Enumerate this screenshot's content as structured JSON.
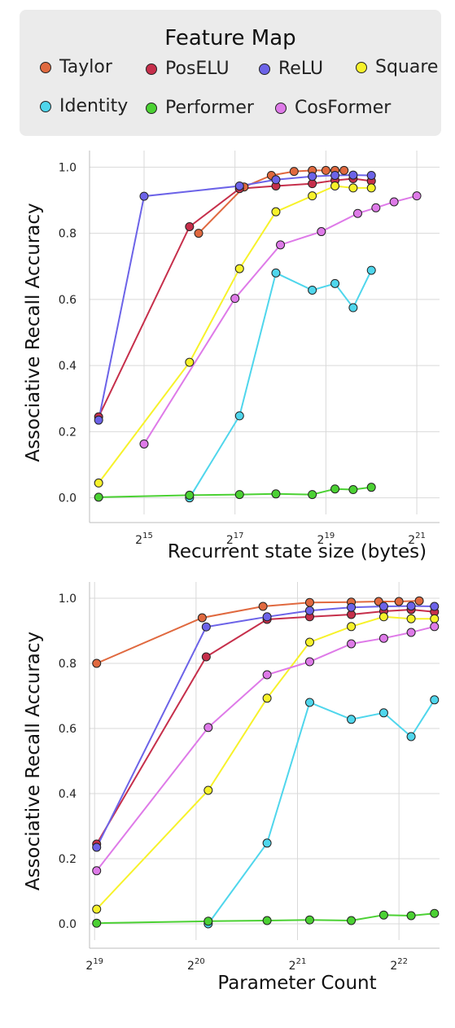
{
  "legend": {
    "title": "Feature Map",
    "items": [
      {
        "name": "Taylor",
        "color": "#e0693f"
      },
      {
        "name": "PosELU",
        "color": "#c62f4b"
      },
      {
        "name": "ReLU",
        "color": "#6c63e8"
      },
      {
        "name": "Square",
        "color": "#f7f22a"
      },
      {
        "name": "Identity",
        "color": "#4fd6ec"
      },
      {
        "name": "Performer",
        "color": "#4bd133"
      },
      {
        "name": "CosFormer",
        "color": "#de7ae8"
      }
    ]
  },
  "chart_data": [
    {
      "type": "line",
      "xlabel": "Recurrent state size (bytes)",
      "ylabel": "Associative Recall Accuracy",
      "xscale": "log2",
      "xlim": [
        13.8,
        21.5
      ],
      "ylim": [
        -0.05,
        1.05
      ],
      "xticks": [
        {
          "base": "2",
          "exp": "15",
          "value": 15
        },
        {
          "base": "2",
          "exp": "17",
          "value": 17
        },
        {
          "base": "2",
          "exp": "19",
          "value": 19
        },
        {
          "base": "2",
          "exp": "21",
          "value": 21
        }
      ],
      "yticks": [
        "0.0",
        "0.2",
        "0.4",
        "0.6",
        "0.8",
        "1.0"
      ],
      "grid": true,
      "series": [
        {
          "name": "Taylor",
          "x": [
            16.2,
            17.2,
            17.8,
            18.3,
            18.7,
            19.0,
            19.2,
            19.4
          ],
          "y": [
            0.8,
            0.94,
            0.975,
            0.987,
            0.99,
            0.99,
            0.99,
            0.99
          ]
        },
        {
          "name": "PosELU",
          "x": [
            14.0,
            16.0,
            17.1,
            17.9,
            18.7,
            19.2,
            19.6,
            20.0
          ],
          "y": [
            0.245,
            0.82,
            0.935,
            0.943,
            0.95,
            0.96,
            0.965,
            0.958
          ]
        },
        {
          "name": "ReLU",
          "x": [
            14.0,
            15.0,
            17.1,
            17.9,
            18.7,
            19.2,
            19.6,
            20.0
          ],
          "y": [
            0.235,
            0.912,
            0.943,
            0.962,
            0.972,
            0.975,
            0.976,
            0.975
          ]
        },
        {
          "name": "Square",
          "x": [
            14.0,
            16.0,
            17.1,
            17.9,
            18.7,
            19.2,
            19.6,
            20.0
          ],
          "y": [
            0.045,
            0.41,
            0.693,
            0.865,
            0.913,
            0.943,
            0.937,
            0.937
          ]
        },
        {
          "name": "Identity",
          "x": [
            16.0,
            17.1,
            17.9,
            18.7,
            19.2,
            19.6,
            20.0
          ],
          "y": [
            0.0,
            0.248,
            0.68,
            0.628,
            0.648,
            0.575,
            0.688
          ]
        },
        {
          "name": "Performer",
          "x": [
            14.0,
            16.0,
            17.1,
            17.9,
            18.7,
            19.2,
            19.6,
            20.0
          ],
          "y": [
            0.002,
            0.008,
            0.01,
            0.012,
            0.01,
            0.027,
            0.025,
            0.032
          ]
        },
        {
          "name": "CosFormer",
          "x": [
            15.0,
            17.0,
            18.0,
            18.9,
            19.7,
            20.1,
            20.5,
            21.0
          ],
          "y": [
            0.163,
            0.603,
            0.765,
            0.805,
            0.86,
            0.877,
            0.895,
            0.913
          ]
        }
      ]
    },
    {
      "type": "line",
      "xlabel": "Parameter Count",
      "ylabel": "Associative Recall Accuracy",
      "xscale": "log2",
      "xlim": [
        18.95,
        22.4
      ],
      "ylim": [
        -0.05,
        1.05
      ],
      "xticks": [
        {
          "base": "2",
          "exp": "19",
          "value": 19
        },
        {
          "base": "2",
          "exp": "20",
          "value": 20
        },
        {
          "base": "2",
          "exp": "21",
          "value": 21
        },
        {
          "base": "2",
          "exp": "22",
          "value": 22
        }
      ],
      "yticks": [
        "0.0",
        "0.2",
        "0.4",
        "0.6",
        "0.8",
        "1.0"
      ],
      "grid": true,
      "series": [
        {
          "name": "Taylor",
          "x": [
            19.02,
            20.06,
            20.66,
            21.12,
            21.53,
            21.8,
            22.0,
            22.2
          ],
          "y": [
            0.8,
            0.94,
            0.975,
            0.987,
            0.988,
            0.99,
            0.99,
            0.992
          ]
        },
        {
          "name": "PosELU",
          "x": [
            19.02,
            20.1,
            20.7,
            21.12,
            21.53,
            21.85,
            22.12,
            22.35
          ],
          "y": [
            0.245,
            0.82,
            0.935,
            0.943,
            0.95,
            0.96,
            0.965,
            0.958
          ]
        },
        {
          "name": "ReLU",
          "x": [
            19.02,
            20.1,
            20.7,
            21.12,
            21.53,
            21.85,
            22.12,
            22.35
          ],
          "y": [
            0.235,
            0.912,
            0.943,
            0.962,
            0.972,
            0.975,
            0.976,
            0.975
          ]
        },
        {
          "name": "Square",
          "x": [
            19.02,
            20.12,
            20.7,
            21.12,
            21.53,
            21.85,
            22.12,
            22.35
          ],
          "y": [
            0.045,
            0.41,
            0.693,
            0.865,
            0.913,
            0.943,
            0.937,
            0.937
          ]
        },
        {
          "name": "Identity",
          "x": [
            20.12,
            20.7,
            21.12,
            21.53,
            21.85,
            22.12,
            22.35
          ],
          "y": [
            0.0,
            0.248,
            0.68,
            0.628,
            0.648,
            0.575,
            0.688
          ]
        },
        {
          "name": "Performer",
          "x": [
            19.02,
            20.12,
            20.7,
            21.12,
            21.53,
            21.85,
            22.12,
            22.35
          ],
          "y": [
            0.002,
            0.008,
            0.01,
            0.012,
            0.01,
            0.027,
            0.025,
            0.032
          ]
        },
        {
          "name": "CosFormer",
          "x": [
            19.02,
            20.12,
            20.7,
            21.12,
            21.53,
            21.85,
            22.12,
            22.35
          ],
          "y": [
            0.163,
            0.603,
            0.765,
            0.805,
            0.86,
            0.877,
            0.895,
            0.913
          ]
        }
      ]
    }
  ]
}
